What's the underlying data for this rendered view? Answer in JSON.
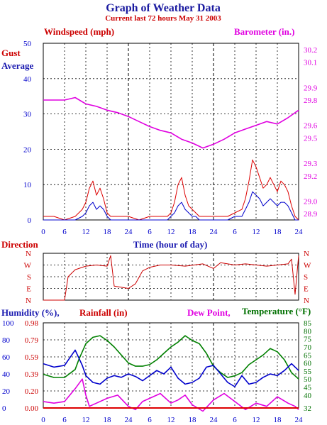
{
  "title": "Graph of Weather Data",
  "subtitle": "Current last 72 hours May 31 2003",
  "x_axis_label": "Time (hour of day)",
  "x_ticks": [
    "0",
    "6",
    "12",
    "18",
    "24",
    "6",
    "12",
    "18",
    "24",
    "6",
    "12",
    "18",
    "24"
  ],
  "colors": {
    "gust": "#dd0000",
    "average": "#0000cc",
    "barometer": "#e000e0",
    "temperature": "#008000",
    "humidity": "#0000cc",
    "dewpoint": "#e000e0",
    "rainfall": "#dd0000",
    "direction": "#cc0000",
    "grid": "#000000"
  },
  "panels": {
    "wind": {
      "left_label": "Windspeed (mph)",
      "right_label": "Barometer (in.)",
      "left_ticks": [
        "0",
        "10",
        "20",
        "30",
        "40",
        "50"
      ],
      "right_ticks": [
        "28.9",
        "29.0",
        "29.2",
        "29.3",
        "29.5",
        "29.6",
        "29.8",
        "29.9",
        "30.1",
        "30.2"
      ],
      "series": [
        {
          "name": "Gust"
        },
        {
          "name": "Average"
        }
      ]
    },
    "direction": {
      "label": "Direction",
      "ticks": [
        "N",
        "E",
        "S",
        "W",
        "N"
      ]
    },
    "humidity": {
      "labels": {
        "humidity": "Humidity (%),",
        "rainfall": "Rainfall (in)",
        "dewpoint": "Dew Point,",
        "temperature": "Temperature (°F)"
      },
      "humidity_ticks": [
        "0",
        "20",
        "40",
        "60",
        "80",
        "100"
      ],
      "rainfall_ticks": [
        "0.00",
        "0.20",
        "0.39",
        "0.59",
        "0.79",
        "0.98"
      ],
      "temp_ticks": [
        "32",
        "40",
        "45",
        "50",
        "55",
        "60",
        "65",
        "70",
        "75",
        "80",
        "85"
      ]
    }
  },
  "chart_data": [
    {
      "type": "line",
      "title": "Windspeed / Barometer",
      "x_unit": "hours",
      "xlim": [
        0,
        72
      ],
      "ylabel": "Windspeed (mph)",
      "ylim": [
        0,
        50
      ],
      "y2label": "Barometer (in.)",
      "y2lim": [
        28.85,
        30.25
      ],
      "series": [
        {
          "name": "Gust",
          "axis": "left",
          "x": [
            0,
            3,
            6,
            9,
            11,
            12,
            13,
            14,
            15,
            16,
            17,
            18,
            19,
            20,
            22,
            24,
            27,
            30,
            33,
            35,
            36,
            37,
            38,
            39,
            40,
            41,
            42,
            43,
            44,
            46,
            48,
            50,
            52,
            54,
            56,
            57,
            58,
            59,
            60,
            61,
            62,
            63,
            64,
            65,
            66,
            67,
            68,
            69,
            70,
            71,
            72
          ],
          "y": [
            1,
            1,
            0,
            1,
            3,
            5,
            9,
            11,
            7,
            9,
            6,
            2,
            1,
            1,
            1,
            1,
            0,
            1,
            1,
            1,
            2,
            5,
            10,
            12,
            7,
            4,
            3,
            2,
            1,
            1,
            1,
            1,
            1,
            2,
            3,
            6,
            11,
            17,
            15,
            12,
            9,
            10,
            12,
            10,
            8,
            11,
            10,
            8,
            4,
            1,
            0
          ]
        },
        {
          "name": "Average",
          "axis": "left",
          "x": [
            0,
            3,
            6,
            9,
            11,
            12,
            13,
            14,
            15,
            16,
            17,
            18,
            19,
            20,
            22,
            24,
            27,
            30,
            33,
            35,
            36,
            37,
            38,
            39,
            40,
            41,
            42,
            43,
            44,
            46,
            48,
            50,
            52,
            54,
            56,
            57,
            58,
            59,
            60,
            61,
            62,
            63,
            64,
            65,
            66,
            67,
            68,
            69,
            70,
            71,
            72
          ],
          "y": [
            0,
            0,
            0,
            0,
            1,
            2,
            4,
            5,
            3,
            4,
            3,
            1,
            0,
            0,
            0,
            0,
            0,
            0,
            0,
            0,
            1,
            2,
            4,
            5,
            3,
            2,
            1,
            1,
            0,
            0,
            0,
            0,
            0,
            1,
            1,
            3,
            5,
            8,
            7,
            6,
            4,
            5,
            6,
            5,
            4,
            5,
            5,
            4,
            2,
            0,
            0
          ]
        },
        {
          "name": "Barometer",
          "axis": "right",
          "x": [
            0,
            3,
            6,
            9,
            12,
            15,
            18,
            21,
            24,
            27,
            30,
            33,
            36,
            39,
            42,
            45,
            48,
            51,
            54,
            57,
            60,
            63,
            66,
            69,
            72
          ],
          "y": [
            29.8,
            29.8,
            29.8,
            29.82,
            29.77,
            29.75,
            29.72,
            29.7,
            29.67,
            29.63,
            29.59,
            29.56,
            29.54,
            29.49,
            29.46,
            29.42,
            29.45,
            29.49,
            29.54,
            29.57,
            29.6,
            29.63,
            29.61,
            29.66,
            29.72
          ]
        }
      ]
    },
    {
      "type": "line",
      "title": "Direction",
      "x_unit": "hours",
      "xlim": [
        0,
        72
      ],
      "y_categories": [
        "N",
        "E",
        "S",
        "W",
        "N"
      ],
      "series": [
        {
          "name": "Direction",
          "x": [
            0,
            6,
            7,
            9,
            12,
            15,
            18,
            19,
            20,
            24,
            26,
            28,
            30,
            33,
            36,
            40,
            45,
            48,
            50,
            54,
            57,
            60,
            63,
            66,
            69,
            70,
            71,
            72
          ],
          "y": [
            0,
            0,
            2,
            2.6,
            2.9,
            3.0,
            2.9,
            3.8,
            1.2,
            1.0,
            1.4,
            2.5,
            2.8,
            3.0,
            3.0,
            2.9,
            3.1,
            2.7,
            3.2,
            3.0,
            3.1,
            3.0,
            2.9,
            3.0,
            3.1,
            3.5,
            0.5,
            3.8
          ]
        }
      ]
    },
    {
      "type": "line",
      "title": "Humidity / Rainfall / Dew Point / Temperature",
      "x_unit": "hours",
      "xlim": [
        0,
        72
      ],
      "ylabel": "Humidity (%)",
      "ylim": [
        0,
        100
      ],
      "y2label": "Temperature (°F)",
      "y2lim": [
        32,
        85
      ],
      "series": [
        {
          "name": "Temperature",
          "axis": "right",
          "x": [
            0,
            3,
            6,
            9,
            10,
            12,
            14,
            16,
            18,
            20,
            22,
            24,
            26,
            28,
            30,
            32,
            34,
            36,
            38,
            40,
            42,
            44,
            46,
            48,
            50,
            52,
            54,
            56,
            58,
            60,
            62,
            64,
            66,
            68,
            70,
            72
          ],
          "y": [
            53,
            51,
            51,
            56,
            62,
            72,
            76,
            77,
            74,
            70,
            65,
            60,
            58,
            58,
            59,
            62,
            66,
            70,
            73,
            77,
            74,
            72,
            66,
            58,
            54,
            51,
            52,
            54,
            59,
            62,
            65,
            69,
            67,
            62,
            54,
            50
          ]
        },
        {
          "name": "Humidity",
          "axis": "left",
          "x": [
            0,
            3,
            6,
            8,
            9,
            11,
            12,
            14,
            16,
            18,
            20,
            22,
            24,
            26,
            28,
            30,
            32,
            34,
            36,
            38,
            40,
            42,
            44,
            46,
            48,
            50,
            52,
            54,
            56,
            58,
            60,
            62,
            64,
            66,
            68,
            70,
            72
          ],
          "y": [
            52,
            48,
            50,
            62,
            68,
            50,
            38,
            30,
            28,
            35,
            38,
            36,
            40,
            37,
            32,
            38,
            44,
            40,
            48,
            35,
            28,
            30,
            35,
            48,
            50,
            40,
            30,
            25,
            38,
            28,
            30,
            36,
            40,
            38,
            44,
            52,
            44
          ]
        },
        {
          "name": "Dew Point",
          "axis": "right",
          "x": [
            0,
            3,
            6,
            9,
            11,
            12,
            13,
            15,
            18,
            21,
            24,
            26,
            28,
            30,
            33,
            36,
            38,
            40,
            42,
            45,
            48,
            51,
            54,
            57,
            60,
            63,
            66,
            69,
            71,
            72
          ],
          "y": [
            36,
            35,
            36,
            44,
            50,
            40,
            33,
            35,
            38,
            40,
            33,
            31,
            36,
            38,
            41,
            35,
            37,
            40,
            34,
            30,
            37,
            41,
            36,
            31,
            35,
            33,
            39,
            35,
            33,
            31
          ]
        },
        {
          "name": "Rainfall",
          "axis": "left",
          "x": [
            0,
            72
          ],
          "y": [
            0,
            0
          ]
        }
      ]
    }
  ]
}
